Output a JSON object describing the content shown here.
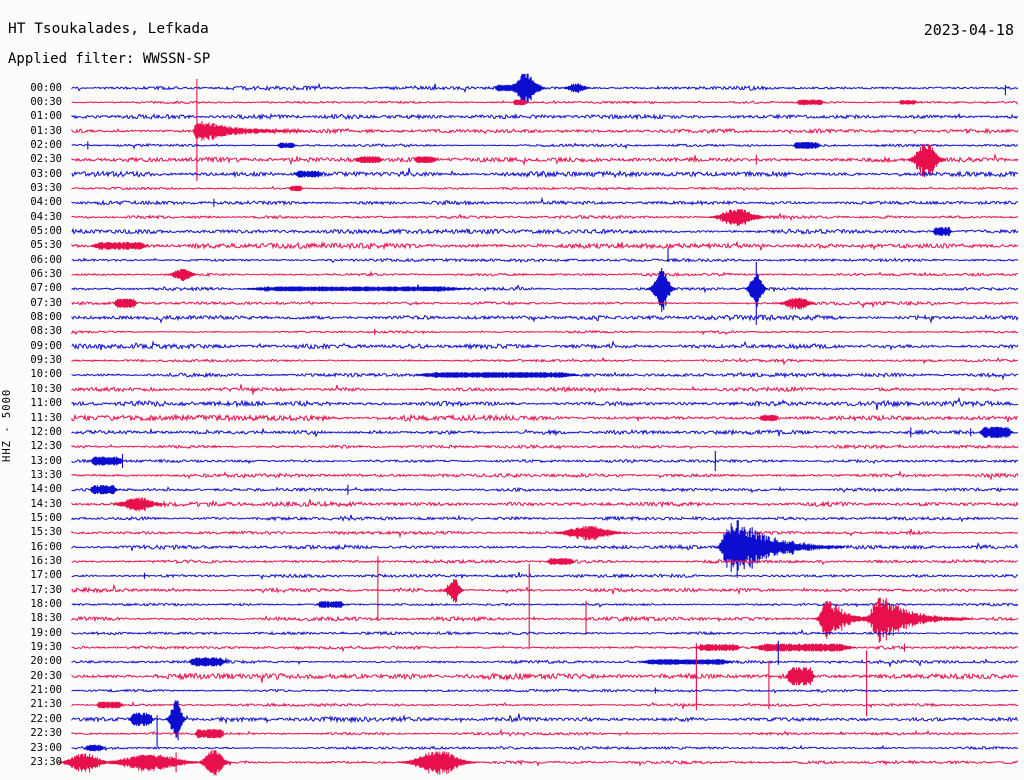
{
  "header": {
    "station": "HT Tsoukalades, Lefkada",
    "date": "2023-04-18",
    "filter": "Applied filter: WWSSN-SP"
  },
  "axis": {
    "scale_label": "HHZ - 5000"
  },
  "colors": {
    "blue": "#0d0dd0",
    "red": "#e8104c",
    "background": "#fcfcfa",
    "text": "#000000"
  },
  "chart_data": {
    "type": "helicorder",
    "title": "HT Tsoukalades, Lefkada",
    "date": "2023-04-18",
    "filter": "WWSSN-SP",
    "channel": "HHZ",
    "scale": 5000,
    "minutes_per_row": 30,
    "x_range_minutes": [
      0,
      30
    ],
    "legend": "alternating blue/red traces, one row per 30 minutes",
    "rows": [
      {
        "label": "00:00",
        "color": "blue",
        "noise": 1.3,
        "events": [
          {
            "k": "blob",
            "t": 13.7,
            "a": 3,
            "w": 0.2
          },
          {
            "k": "burst",
            "t": 14.4,
            "a": 13,
            "w": 0.35
          },
          {
            "k": "burst",
            "t": 16.0,
            "a": 4,
            "w": 0.3
          },
          {
            "k": "spike",
            "t": 29.6,
            "up": 3,
            "dn": 7
          }
        ]
      },
      {
        "label": "00:30",
        "color": "red",
        "noise": 0.8,
        "events": [
          {
            "k": "blob",
            "t": 14.2,
            "a": 2.5,
            "w": 0.15
          },
          {
            "k": "blob",
            "t": 23.4,
            "a": 2.5,
            "w": 0.3
          },
          {
            "k": "blob",
            "t": 26.5,
            "a": 2,
            "w": 0.2
          }
        ]
      },
      {
        "label": "01:00",
        "color": "blue",
        "noise": 1.5,
        "events": []
      },
      {
        "label": "01:30",
        "color": "red",
        "noise": 1.5,
        "events": [
          {
            "k": "spike",
            "t": 3.96,
            "up": 52,
            "dn": 50
          },
          {
            "k": "quake",
            "t": 3.96,
            "a": 9,
            "w": 0.12,
            "d": 1.2
          }
        ]
      },
      {
        "label": "02:00",
        "color": "blue",
        "noise": 0.9,
        "events": [
          {
            "k": "spike",
            "t": 0.5,
            "up": 4,
            "dn": 4
          },
          {
            "k": "blob",
            "t": 6.8,
            "a": 2.5,
            "w": 0.2
          },
          {
            "k": "blob",
            "t": 23.3,
            "a": 3,
            "w": 0.3
          }
        ]
      },
      {
        "label": "02:30",
        "color": "red",
        "noise": 1.5,
        "events": [
          {
            "k": "blob",
            "t": 9.4,
            "a": 3,
            "w": 0.3
          },
          {
            "k": "blob",
            "t": 11.2,
            "a": 3,
            "w": 0.25
          },
          {
            "k": "spike",
            "t": 21.7,
            "up": 5,
            "dn": 5
          },
          {
            "k": "burst",
            "t": 27.1,
            "a": 14,
            "w": 0.35
          }
        ]
      },
      {
        "label": "03:00",
        "color": "blue",
        "noise": 1.9,
        "events": [
          {
            "k": "blob",
            "t": 7.5,
            "a": 3,
            "w": 0.3
          }
        ]
      },
      {
        "label": "03:30",
        "color": "red",
        "noise": 0.8,
        "events": [
          {
            "k": "blob",
            "t": 7.1,
            "a": 2.5,
            "w": 0.15
          }
        ]
      },
      {
        "label": "04:00",
        "color": "blue",
        "noise": 1.3,
        "events": [
          {
            "k": "spike",
            "t": 4.5,
            "up": 4,
            "dn": 4
          }
        ]
      },
      {
        "label": "04:30",
        "color": "red",
        "noise": 1.0,
        "events": [
          {
            "k": "burst",
            "t": 21.1,
            "a": 7,
            "w": 0.55
          }
        ]
      },
      {
        "label": "05:00",
        "color": "blue",
        "noise": 1.7,
        "events": [
          {
            "k": "blob",
            "t": 27.6,
            "a": 4,
            "w": 0.2
          }
        ]
      },
      {
        "label": "05:30",
        "color": "red",
        "noise": 1.9,
        "events": [
          {
            "k": "blob",
            "t": 1.5,
            "a": 3.5,
            "w": 0.6
          }
        ]
      },
      {
        "label": "06:00",
        "color": "blue",
        "noise": 0.9,
        "events": [
          {
            "k": "spike",
            "t": 18.9,
            "up": 12,
            "dn": 2
          }
        ]
      },
      {
        "label": "06:30",
        "color": "red",
        "noise": 0.9,
        "events": [
          {
            "k": "burst",
            "t": 3.5,
            "a": 5,
            "w": 0.3
          }
        ]
      },
      {
        "label": "07:00",
        "color": "blue",
        "noise": 1.1,
        "events": [
          {
            "k": "blob",
            "t": 9.0,
            "a": 2.2,
            "w": 2.5
          },
          {
            "k": "spike",
            "t": 18.7,
            "up": 21,
            "dn": 23
          },
          {
            "k": "burst",
            "t": 18.7,
            "a": 16,
            "w": 0.25
          },
          {
            "k": "spike",
            "t": 21.7,
            "up": 27,
            "dn": 36
          },
          {
            "k": "burst",
            "t": 21.7,
            "a": 14,
            "w": 0.2
          }
        ]
      },
      {
        "label": "07:30",
        "color": "red",
        "noise": 1.0,
        "events": [
          {
            "k": "blob",
            "t": 1.7,
            "a": 4,
            "w": 0.25
          },
          {
            "k": "burst",
            "t": 23.0,
            "a": 5,
            "w": 0.4
          }
        ]
      },
      {
        "label": "08:00",
        "color": "blue",
        "noise": 1.7,
        "events": []
      },
      {
        "label": "08:30",
        "color": "red",
        "noise": 0.8,
        "events": [
          {
            "k": "spike",
            "t": 9.6,
            "up": 3,
            "dn": 3
          }
        ]
      },
      {
        "label": "09:00",
        "color": "blue",
        "noise": 1.6,
        "events": []
      },
      {
        "label": "09:30",
        "color": "red",
        "noise": 0.9,
        "events": []
      },
      {
        "label": "10:00",
        "color": "blue",
        "noise": 1.2,
        "events": [
          {
            "k": "blob",
            "t": 13.5,
            "a": 2.5,
            "w": 1.8
          }
        ]
      },
      {
        "label": "10:30",
        "color": "red",
        "noise": 1.4,
        "events": []
      },
      {
        "label": "11:00",
        "color": "blue",
        "noise": 1.8,
        "events": []
      },
      {
        "label": "11:30",
        "color": "red",
        "noise": 1.9,
        "events": [
          {
            "k": "blob",
            "t": 22.1,
            "a": 3,
            "w": 0.2
          }
        ]
      },
      {
        "label": "12:00",
        "color": "blue",
        "noise": 1.3,
        "events": [
          {
            "k": "spike",
            "t": 26.6,
            "up": 5,
            "dn": 5
          },
          {
            "k": "spike",
            "t": 28.5,
            "up": 4,
            "dn": 4
          },
          {
            "k": "blob",
            "t": 29.3,
            "a": 5,
            "w": 0.35
          }
        ]
      },
      {
        "label": "12:30",
        "color": "red",
        "noise": 1.0,
        "events": []
      },
      {
        "label": "13:00",
        "color": "blue",
        "noise": 0.9,
        "events": [
          {
            "k": "blob",
            "t": 1.1,
            "a": 4,
            "w": 0.35
          },
          {
            "k": "spike",
            "t": 1.6,
            "up": 7,
            "dn": 7
          },
          {
            "k": "spike",
            "t": 20.4,
            "up": 10,
            "dn": 10
          }
        ]
      },
      {
        "label": "13:30",
        "color": "red",
        "noise": 1.3,
        "events": []
      },
      {
        "label": "14:00",
        "color": "blue",
        "noise": 1.1,
        "events": [
          {
            "k": "blob",
            "t": 1.0,
            "a": 4,
            "w": 0.3
          },
          {
            "k": "spike",
            "t": 8.75,
            "up": 5,
            "dn": 5
          }
        ]
      },
      {
        "label": "14:30",
        "color": "red",
        "noise": 1.5,
        "events": [
          {
            "k": "burst",
            "t": 2.1,
            "a": 6,
            "w": 0.5
          }
        ]
      },
      {
        "label": "15:00",
        "color": "blue",
        "noise": 1.2,
        "events": []
      },
      {
        "label": "15:30",
        "color": "red",
        "noise": 1.0,
        "events": [
          {
            "k": "burst",
            "t": 16.4,
            "a": 6,
            "w": 0.7
          }
        ]
      },
      {
        "label": "16:00",
        "color": "blue",
        "noise": 1.4,
        "events": [
          {
            "k": "burst",
            "t": 20.8,
            "a": 16,
            "w": 0.2
          },
          {
            "k": "quake",
            "t": 21.0,
            "a": 24,
            "w": 0.3,
            "d": 1.1
          }
        ]
      },
      {
        "label": "16:30",
        "color": "red",
        "noise": 1.1,
        "events": [
          {
            "k": "blob",
            "t": 15.5,
            "a": 3,
            "w": 0.3
          }
        ]
      },
      {
        "label": "17:00",
        "color": "blue",
        "noise": 1.0,
        "events": [
          {
            "k": "spike",
            "t": 2.3,
            "up": 3,
            "dn": 3
          }
        ]
      },
      {
        "label": "17:30",
        "color": "red",
        "noise": 1.3,
        "events": [
          {
            "k": "spike",
            "t": 9.7,
            "up": 34,
            "dn": 31
          },
          {
            "k": "burst",
            "t": 12.1,
            "a": 10,
            "w": 0.2
          }
        ]
      },
      {
        "label": "18:00",
        "color": "blue",
        "noise": 0.9,
        "events": [
          {
            "k": "blob",
            "t": 8.2,
            "a": 3,
            "w": 0.3
          }
        ]
      },
      {
        "label": "18:30",
        "color": "red",
        "noise": 1.4,
        "events": [
          {
            "k": "spike",
            "t": 14.5,
            "up": 55,
            "dn": 28
          },
          {
            "k": "spike",
            "t": 16.3,
            "up": 18,
            "dn": 16
          },
          {
            "k": "quake",
            "t": 24.0,
            "a": 17,
            "w": 0.35,
            "d": 0.5
          },
          {
            "k": "quake",
            "t": 25.6,
            "a": 19,
            "w": 0.4,
            "d": 0.9
          }
        ]
      },
      {
        "label": "19:00",
        "color": "blue",
        "noise": 1.0,
        "events": []
      },
      {
        "label": "19:30",
        "color": "red",
        "noise": 1.0,
        "events": [
          {
            "k": "blob",
            "t": 20.5,
            "a": 3,
            "w": 0.5
          },
          {
            "k": "blob",
            "t": 23.2,
            "a": 3.5,
            "w": 1.1
          },
          {
            "k": "spike",
            "t": 26.4,
            "up": 4,
            "dn": 4
          }
        ]
      },
      {
        "label": "20:00",
        "color": "blue",
        "noise": 1.1,
        "events": [
          {
            "k": "blob",
            "t": 4.3,
            "a": 4,
            "w": 0.4
          },
          {
            "k": "blob",
            "t": 19.5,
            "a": 2.5,
            "w": 1.0
          },
          {
            "k": "spike",
            "t": 22.4,
            "up": 21,
            "dn": 3
          }
        ]
      },
      {
        "label": "20:30",
        "color": "red",
        "noise": 1.9,
        "events": [
          {
            "k": "spike",
            "t": 19.8,
            "up": 33,
            "dn": 34
          },
          {
            "k": "spike",
            "t": 22.1,
            "up": 15,
            "dn": 33
          },
          {
            "k": "blob",
            "t": 23.1,
            "a": 8,
            "w": 0.3
          },
          {
            "k": "spike",
            "t": 25.2,
            "up": 26,
            "dn": 40
          }
        ]
      },
      {
        "label": "21:00",
        "color": "blue",
        "noise": 0.8,
        "events": [
          {
            "k": "spike",
            "t": 18.5,
            "up": 3,
            "dn": 3
          }
        ]
      },
      {
        "label": "21:30",
        "color": "red",
        "noise": 0.9,
        "events": [
          {
            "k": "blob",
            "t": 1.2,
            "a": 3,
            "w": 0.3
          }
        ]
      },
      {
        "label": "22:00",
        "color": "blue",
        "noise": 1.6,
        "events": [
          {
            "k": "blob",
            "t": 2.2,
            "a": 6,
            "w": 0.25
          },
          {
            "k": "spike",
            "t": 2.7,
            "up": 4,
            "dn": 27
          },
          {
            "k": "burst",
            "t": 3.3,
            "a": 17,
            "w": 0.18
          },
          {
            "k": "spike",
            "t": 3.32,
            "up": 17,
            "dn": 18
          }
        ]
      },
      {
        "label": "22:30",
        "color": "red",
        "noise": 0.9,
        "events": [
          {
            "k": "blob",
            "t": 4.2,
            "a": 4,
            "w": 0.2
          },
          {
            "k": "blob",
            "t": 4.6,
            "a": 4,
            "w": 0.15
          }
        ]
      },
      {
        "label": "23:00",
        "color": "blue",
        "noise": 0.9,
        "events": [
          {
            "k": "blob",
            "t": 0.7,
            "a": 3,
            "w": 0.2
          }
        ]
      },
      {
        "label": "23:30",
        "color": "red",
        "noise": 1.2,
        "events": [
          {
            "k": "burst",
            "t": 0.4,
            "a": 8,
            "w": 0.5
          },
          {
            "k": "burst",
            "t": 2.5,
            "a": 7,
            "w": 1.0
          },
          {
            "k": "spike",
            "t": 3.3,
            "up": 10,
            "dn": 10
          },
          {
            "k": "burst",
            "t": 4.5,
            "a": 11,
            "w": 0.3
          },
          {
            "k": "burst",
            "t": 11.6,
            "a": 10,
            "w": 0.7
          }
        ]
      }
    ]
  }
}
